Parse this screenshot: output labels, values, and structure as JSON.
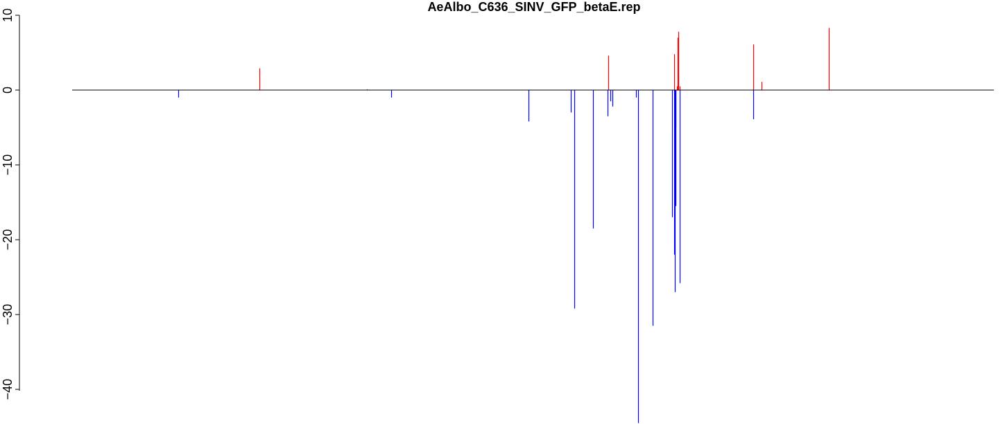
{
  "chart_data": {
    "type": "bar",
    "title": "AeAlbo_C636_SINV_GFP_betaE.rep",
    "xlabel": "",
    "ylabel": "",
    "ylim": [
      -45,
      10
    ],
    "yticks": [
      -40,
      -30,
      -20,
      -10,
      0,
      10
    ],
    "ytick_labels": [
      "−40",
      "−30",
      "−20",
      "−10",
      "0",
      "10"
    ],
    "xlim": [
      0,
      1000
    ],
    "x_axis_shown": false,
    "grid": false,
    "colors": {
      "positive": "#ff0000",
      "negative": "#0000ff",
      "baseline": "#000000"
    },
    "x": [
      115,
      203,
      320,
      346,
      495,
      541,
      545,
      565,
      581,
      582,
      584,
      586,
      612,
      614,
      630,
      651,
      653,
      654,
      655,
      656,
      657,
      658,
      653,
      655,
      659,
      659,
      658,
      739,
      739,
      748,
      821,
      852,
      858,
      950,
      950,
      1000
    ],
    "values": [
      -1.0,
      2.9,
      0.1,
      -1.0,
      -4.2,
      -3.0,
      -29.2,
      -18.5,
      -3.5,
      4.6,
      -1.5,
      -2.2,
      -1.0,
      -44.5,
      -31.5,
      -17.0,
      -22.0,
      -27.0,
      -5.0,
      0.5,
      7.0,
      2.0,
      4.8,
      -15.5,
      -25.8,
      0.5,
      7.8,
      6.1,
      -3.9,
      1.1,
      8.3,
      0.0,
      0.0,
      0.0,
      0.0,
      0.0
    ]
  }
}
